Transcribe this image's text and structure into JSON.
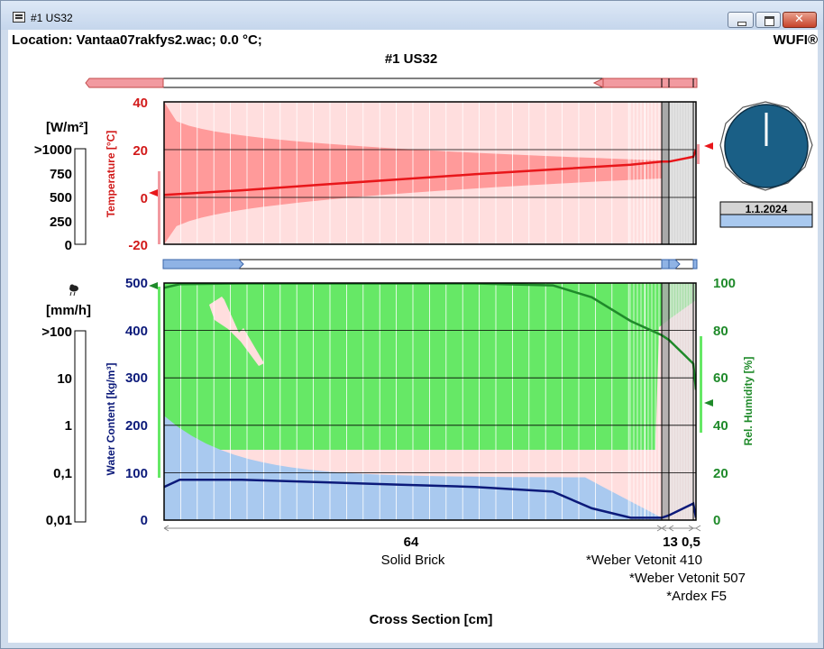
{
  "window": {
    "title": "#1 US32",
    "icon": "wufi-app-icon"
  },
  "header": {
    "location": "Location: Vantaa07rakfys2.wac; 0.0 °C;",
    "brand": "WUFI®",
    "title": "#1 US32"
  },
  "clock": {
    "date": "1.1.2024"
  },
  "colors": {
    "temperature": "#e8161a",
    "temperature_band": "#ff9a9a",
    "temperature_band_light": "#ffcccc",
    "humidity": "#1f8a2a",
    "humidity_band": "#66e866",
    "water_content": "#0c1a7a",
    "water_band": "#a9c9ef",
    "band_bg": "#ffdcdc",
    "clock_face": "#1a5f86"
  },
  "temperature_chart": {
    "flux_unit": "[W/m²]",
    "flux_ticks": [
      ">1000",
      "750",
      "500",
      "250",
      "0"
    ],
    "axis_label": "Temperature [°C]",
    "ticks": [
      "40",
      "20",
      "0",
      "-20"
    ]
  },
  "moisture_chart": {
    "rain_unit": "[mm/h]",
    "rain_ticks": [
      ">100",
      "10",
      "1",
      "0,1",
      "0,01"
    ],
    "wc_label": "Water Content [kg/m³]",
    "wc_ticks": [
      "500",
      "400",
      "300",
      "200",
      "100",
      "0"
    ],
    "rh_label": "Rel. Humidity [%]",
    "rh_ticks": [
      "100",
      "80",
      "60",
      "40",
      "20",
      "0"
    ]
  },
  "cross_section": {
    "axis_label": "Cross Section [cm]",
    "thickness_main": "64",
    "thickness_right": "13 0,5",
    "layers": [
      "Solid Brick",
      "*Weber Vetonit 410",
      "*Weber Vetonit 507",
      "*Ardex F5"
    ]
  },
  "chart_data": [
    {
      "type": "line",
      "x": [
        0,
        10,
        20,
        30,
        40,
        50,
        60,
        64.0,
        64.7,
        66.0,
        67.5
      ],
      "series": [
        {
          "values": [
            1,
            3,
            5.3,
            7.5,
            9.7,
            11.7,
            13.7,
            15,
            15,
            17,
            20
          ]
        }
      ],
      "ylim": [
        -20,
        40
      ]
    },
    {
      "type": "line",
      "x": [
        0,
        2,
        10,
        20,
        30,
        40,
        50,
        55,
        60,
        64.0,
        64.7,
        66.0,
        67.5
      ],
      "series": [
        {
          "values": [
            98,
            99.5,
            99.8,
            99.8,
            99.8,
            99.8,
            99,
            94,
            84,
            78,
            76,
            66,
            55
          ]
        },
        {
          "values": [
            14,
            17,
            17,
            16,
            15,
            14,
            12,
            5,
            1,
            1,
            2,
            7,
            1
          ]
        }
      ],
      "ylim": [
        0,
        100
      ]
    }
  ]
}
